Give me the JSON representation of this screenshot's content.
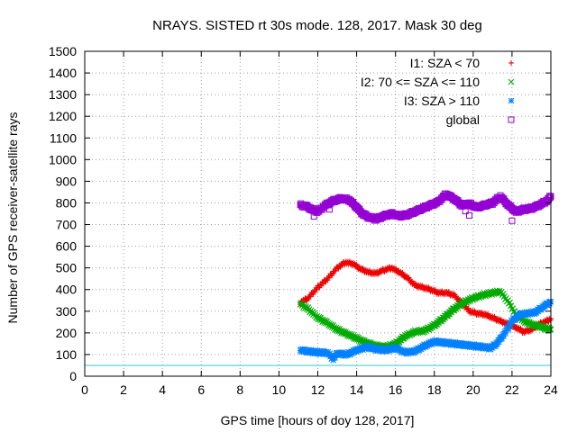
{
  "chart_data": {
    "type": "scatter",
    "title": "NRAYS. SISTED rt 30s mode. 128, 2017. Mask 30 deg",
    "xlabel": "GPS time [hours of doy 128, 2017]",
    "ylabel": "Number of GPS receiver-satellite rays",
    "xlim": [
      0,
      24
    ],
    "ylim": [
      0,
      1500
    ],
    "xticks": [
      0,
      2,
      4,
      6,
      8,
      10,
      12,
      14,
      16,
      18,
      20,
      22,
      24
    ],
    "yticks": [
      0,
      100,
      200,
      300,
      400,
      500,
      600,
      700,
      800,
      900,
      1000,
      1100,
      1200,
      1300,
      1400,
      1500
    ],
    "grid": true,
    "legend_position": "top-right",
    "reference_line": {
      "y": 50,
      "color": "#30c8c8"
    },
    "series": [
      {
        "name": "I1: SZA < 70",
        "marker": "+",
        "color": "#ee0000",
        "x": [
          11.1,
          11.5,
          12.0,
          12.5,
          13.0,
          13.4,
          13.8,
          14.2,
          14.6,
          15.0,
          15.4,
          15.8,
          16.2,
          16.6,
          17.0,
          17.4,
          17.8,
          18.2,
          18.6,
          19.0,
          19.4,
          19.8,
          20.2,
          20.6,
          21.0,
          21.4,
          21.8,
          22.2,
          22.6,
          23.0,
          23.4,
          23.8,
          24.0
        ],
        "values": [
          340,
          360,
          410,
          450,
          500,
          525,
          520,
          495,
          480,
          475,
          490,
          500,
          480,
          455,
          420,
          410,
          400,
          385,
          385,
          375,
          340,
          300,
          290,
          285,
          270,
          255,
          240,
          225,
          205,
          215,
          240,
          255,
          265
        ]
      },
      {
        "name": "I2: 70 <= SZA <= 110",
        "marker": "x",
        "color": "#00aa00",
        "x": [
          11.1,
          11.5,
          12.0,
          12.5,
          13.0,
          13.5,
          14.0,
          14.5,
          15.0,
          15.5,
          16.0,
          16.5,
          17.0,
          17.5,
          18.0,
          18.5,
          19.0,
          19.5,
          20.0,
          20.5,
          21.0,
          21.4,
          21.8,
          22.2,
          22.6,
          23.0,
          23.4,
          23.8,
          24.0
        ],
        "values": [
          335,
          310,
          270,
          245,
          215,
          195,
          175,
          155,
          140,
          135,
          150,
          185,
          205,
          210,
          235,
          270,
          310,
          340,
          360,
          375,
          385,
          390,
          345,
          285,
          255,
          240,
          230,
          220,
          215
        ]
      },
      {
        "name": "I3: SZA > 110",
        "marker": "*",
        "color": "#0080ff",
        "x": [
          11.1,
          11.5,
          12.0,
          12.5,
          12.8,
          13.0,
          13.5,
          14.0,
          14.5,
          15.0,
          15.5,
          16.0,
          16.5,
          17.0,
          17.5,
          18.0,
          18.5,
          19.0,
          19.5,
          20.0,
          20.5,
          20.9,
          21.2,
          21.6,
          22.0,
          22.4,
          22.8,
          23.2,
          23.6,
          24.0
        ],
        "values": [
          120,
          115,
          110,
          108,
          80,
          105,
          100,
          120,
          135,
          125,
          120,
          130,
          110,
          115,
          140,
          160,
          155,
          150,
          145,
          140,
          135,
          130,
          150,
          195,
          255,
          285,
          290,
          295,
          320,
          345
        ]
      },
      {
        "name": "global",
        "marker": "square",
        "color": "#9400d3",
        "x": [
          11.1,
          11.4,
          11.7,
          12.0,
          12.4,
          12.8,
          13.2,
          13.6,
          14.0,
          14.3,
          14.6,
          15.0,
          15.4,
          15.8,
          16.2,
          16.6,
          17.0,
          17.4,
          17.8,
          18.2,
          18.6,
          19.0,
          19.4,
          19.8,
          20.2,
          20.6,
          21.0,
          21.4,
          21.8,
          22.2,
          22.6,
          23.0,
          23.4,
          23.8,
          24.0
        ],
        "values": [
          790,
          785,
          770,
          760,
          790,
          810,
          820,
          815,
          780,
          750,
          735,
          725,
          740,
          750,
          740,
          745,
          760,
          775,
          790,
          805,
          840,
          820,
          790,
          795,
          780,
          790,
          800,
          830,
          790,
          760,
          770,
          775,
          790,
          810,
          830
        ]
      }
    ],
    "outliers": [
      {
        "series": "global",
        "x": 11.8,
        "value": 738
      },
      {
        "series": "global",
        "x": 12.6,
        "value": 770
      },
      {
        "series": "global",
        "x": 19.6,
        "value": 762
      },
      {
        "series": "global",
        "x": 19.8,
        "value": 742
      },
      {
        "series": "global",
        "x": 22.0,
        "value": 718
      }
    ]
  }
}
